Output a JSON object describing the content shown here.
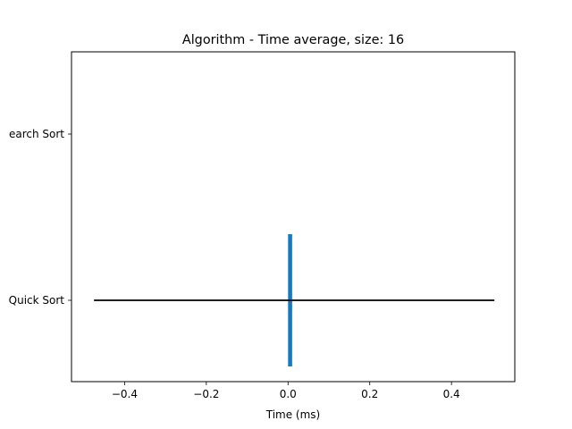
{
  "chart_data": {
    "type": "bar",
    "orientation": "horizontal",
    "title": "Algorithm - Time average, size: 16",
    "xlabel": "Time (ms)",
    "ylabel": "",
    "xlim": [
      -0.53,
      0.555
    ],
    "x_ticks": [
      -0.4,
      -0.2,
      0.0,
      0.2,
      0.4
    ],
    "x_tick_labels": [
      "−0.4",
      "−0.2",
      "0.0",
      "0.2",
      "0.4"
    ],
    "categories": [
      "Quick Sort",
      "Search Sort"
    ],
    "category_labels": [
      "Quick Sort",
      "earch Sort"
    ],
    "values": [
      0.01,
      0
    ],
    "error_bars": [
      {
        "category": "Quick Sort",
        "low": -0.475,
        "high": 0.505
      }
    ],
    "bar_color": "#1f77b4",
    "error_color": "#000000",
    "grid": false,
    "legend": false
  }
}
